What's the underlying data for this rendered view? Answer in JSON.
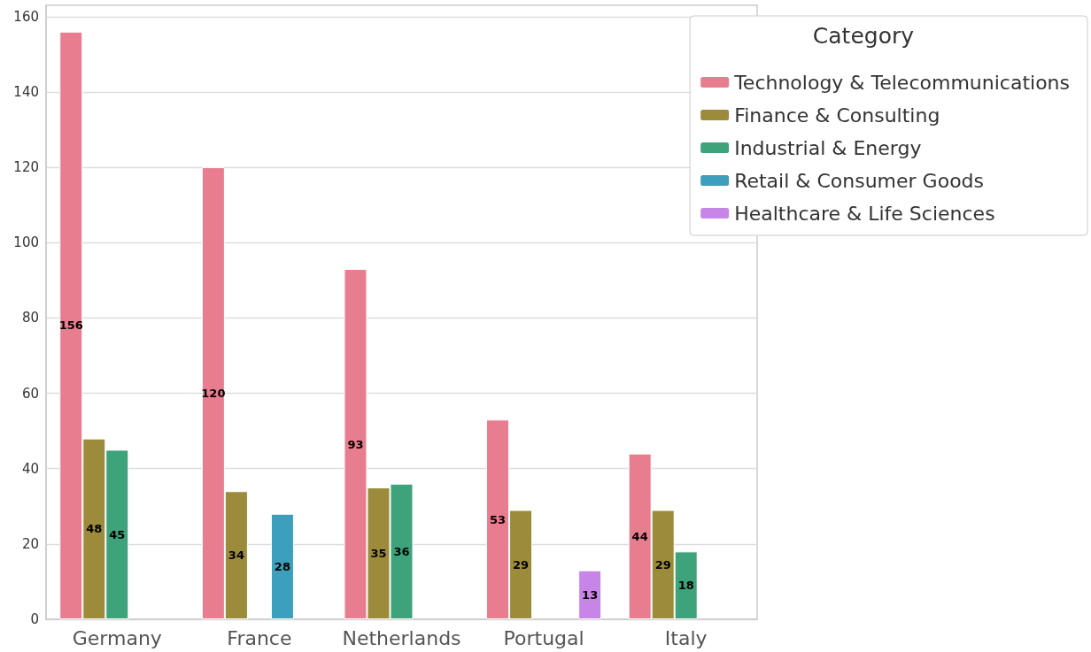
{
  "chart_data": {
    "type": "bar",
    "legend_title": "Category",
    "categories": [
      "Germany",
      "France",
      "Netherlands",
      "Portugal",
      "Italy"
    ],
    "series": [
      {
        "name": "Technology & Telecommunications",
        "color": "#e87d8f",
        "values": [
          156,
          120,
          93,
          53,
          44
        ]
      },
      {
        "name": "Finance & Consulting",
        "color": "#9c8b3a",
        "values": [
          48,
          34,
          35,
          29,
          29
        ]
      },
      {
        "name": "Industrial & Energy",
        "color": "#3ea27a",
        "values": [
          45,
          null,
          36,
          null,
          18
        ]
      },
      {
        "name": "Retail & Consumer Goods",
        "color": "#3c9fbb",
        "values": [
          null,
          28,
          null,
          null,
          null
        ]
      },
      {
        "name": "Healthcare & Life Sciences",
        "color": "#c785e8",
        "values": [
          null,
          null,
          null,
          13,
          null
        ]
      }
    ],
    "ylim": [
      0,
      163
    ],
    "yticks": [
      0,
      20,
      40,
      60,
      80,
      100,
      120,
      140,
      160
    ],
    "grid": "y",
    "legend": "top right",
    "data_labels": true
  }
}
